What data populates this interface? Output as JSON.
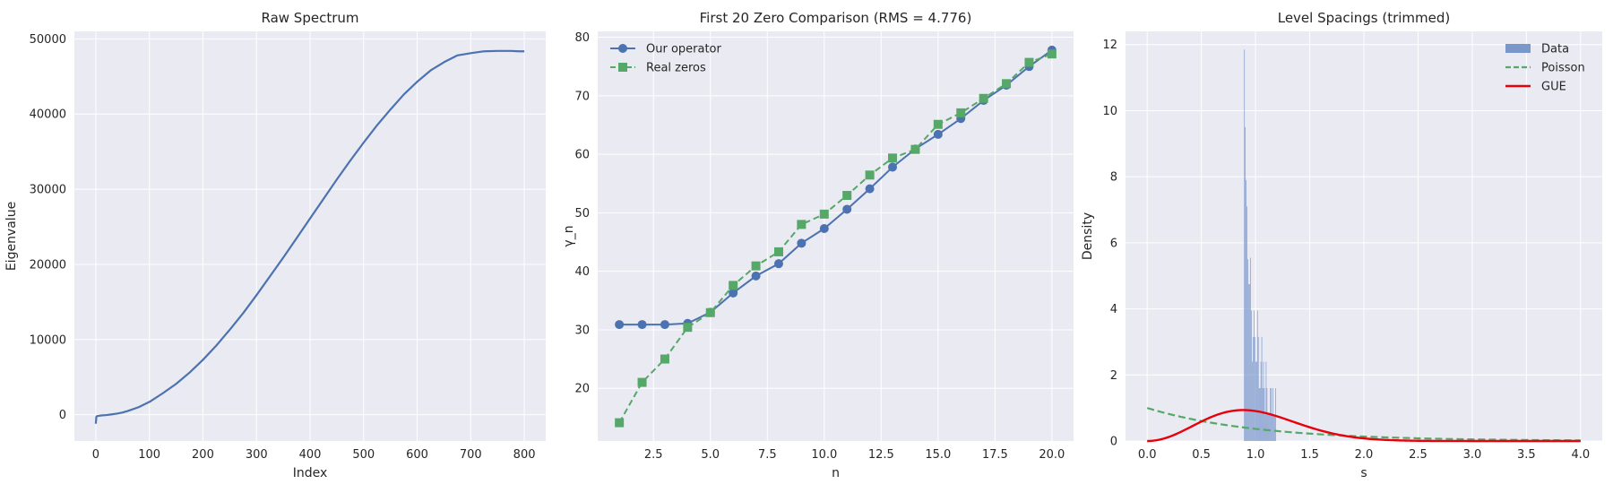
{
  "colors": {
    "blue": "#4c72b0",
    "green": "#55a868",
    "red": "#e8000b",
    "hist": "#7a97cc"
  },
  "chart_data": [
    {
      "type": "line",
      "title": "Raw Spectrum",
      "xlabel": "Index",
      "ylabel": "Eigenvalue",
      "xlim": [
        -40,
        840
      ],
      "ylim": [
        -3500,
        51000
      ],
      "xticks": [
        0,
        100,
        200,
        300,
        400,
        500,
        600,
        700,
        800
      ],
      "yticks": [
        0,
        10000,
        20000,
        30000,
        40000,
        50000
      ],
      "xtick_labels": [
        "0",
        "100",
        "200",
        "300",
        "400",
        "500",
        "600",
        "700",
        "800"
      ],
      "ytick_labels": [
        "0",
        "10000",
        "20000",
        "30000",
        "40000",
        "50000"
      ],
      "series": [
        {
          "name": "spectrum",
          "x": [
            0,
            1,
            2,
            5,
            10,
            20,
            30,
            40,
            50,
            60,
            80,
            100,
            125,
            150,
            175,
            200,
            225,
            250,
            275,
            300,
            325,
            350,
            375,
            400,
            425,
            450,
            475,
            500,
            525,
            550,
            575,
            600,
            625,
            650,
            675,
            700,
            725,
            750,
            775,
            790,
            800
          ],
          "y": [
            -1200,
            -300,
            -200,
            -150,
            -100,
            -50,
            50,
            150,
            300,
            500,
            1000,
            1700,
            2850,
            4100,
            5600,
            7300,
            9200,
            11300,
            13500,
            15900,
            18400,
            20900,
            23500,
            26100,
            28700,
            31300,
            33800,
            36200,
            38500,
            40600,
            42600,
            44300,
            45800,
            46900,
            47800,
            48100,
            48350,
            48400,
            48400,
            48350,
            48350
          ]
        }
      ]
    },
    {
      "type": "line",
      "title": "First 20 Zero Comparison (RMS = 4.776)",
      "xlabel": "n",
      "ylabel": "γ_n",
      "xlim": [
        0.05,
        20.95
      ],
      "ylim": [
        11,
        81
      ],
      "xticks": [
        2.5,
        5.0,
        7.5,
        10.0,
        12.5,
        15.0,
        17.5,
        20.0
      ],
      "yticks": [
        20,
        30,
        40,
        50,
        60,
        70,
        80
      ],
      "xtick_labels": [
        "2.5",
        "5.0",
        "7.5",
        "10.0",
        "12.5",
        "15.0",
        "17.5",
        "20.0"
      ],
      "ytick_labels": [
        "20",
        "30",
        "40",
        "50",
        "60",
        "70",
        "80"
      ],
      "legend": "top-left",
      "series": [
        {
          "name": "Our operator",
          "marker": "circle",
          "style": "solid",
          "x": [
            1,
            2,
            3,
            4,
            5,
            6,
            7,
            8,
            9,
            10,
            11,
            12,
            13,
            14,
            15,
            16,
            17,
            18,
            19,
            20
          ],
          "y": [
            30.9,
            30.9,
            30.9,
            31.1,
            33.0,
            36.3,
            39.2,
            41.3,
            44.8,
            47.3,
            50.6,
            54.1,
            57.8,
            60.9,
            63.4,
            66.1,
            69.2,
            71.8,
            75.0,
            77.8
          ]
        },
        {
          "name": "Real zeros",
          "marker": "square",
          "style": "dashed",
          "x": [
            1,
            2,
            3,
            4,
            5,
            6,
            7,
            8,
            9,
            10,
            11,
            12,
            13,
            14,
            15,
            16,
            17,
            18,
            19,
            20
          ],
          "y": [
            14.13,
            21.02,
            25.01,
            30.42,
            32.94,
            37.59,
            40.92,
            43.33,
            48.01,
            49.77,
            52.97,
            56.45,
            59.35,
            60.83,
            65.11,
            67.08,
            69.55,
            72.07,
            75.7,
            77.14
          ]
        }
      ]
    },
    {
      "type": "bar",
      "title": "Level Spacings (trimmed)",
      "xlabel": "s",
      "ylabel": "Density",
      "xlim": [
        -0.2,
        4.2
      ],
      "ylim": [
        0,
        12.4
      ],
      "xticks": [
        0.0,
        0.5,
        1.0,
        1.5,
        2.0,
        2.5,
        3.0,
        3.5,
        4.0
      ],
      "yticks": [
        0,
        2,
        4,
        6,
        8,
        10,
        12
      ],
      "xtick_labels": [
        "0.0",
        "0.5",
        "1.0",
        "1.5",
        "2.0",
        "2.5",
        "3.0",
        "3.5",
        "4.0"
      ],
      "ytick_labels": [
        "0",
        "2",
        "4",
        "6",
        "8",
        "10",
        "12"
      ],
      "legend": "top-right",
      "histogram": {
        "name": "Data",
        "bin_width": 0.008,
        "bin_starts": [
          0.895,
          0.903,
          0.911,
          0.919,
          0.927,
          0.935,
          0.943,
          0.951,
          0.959,
          0.967,
          0.975,
          0.983,
          0.991,
          0.999,
          1.007,
          1.015,
          1.023,
          1.031,
          1.039,
          1.047,
          1.055,
          1.063,
          1.071,
          1.079,
          1.087,
          1.095,
          1.103,
          1.111,
          1.119,
          1.127,
          1.135,
          1.143,
          1.151,
          1.159,
          1.167,
          1.175,
          1.183
        ],
        "densities": [
          11.85,
          9.5,
          7.9,
          7.1,
          5.5,
          4.75,
          4.75,
          5.55,
          3.95,
          2.4,
          3.15,
          3.95,
          3.15,
          2.4,
          2.4,
          3.95,
          3.15,
          1.6,
          1.6,
          2.4,
          3.15,
          1.6,
          2.4,
          1.6,
          0.8,
          2.4,
          1.6,
          0.8,
          0.8,
          0.8,
          1.6,
          1.6,
          0.8,
          1.6,
          0.8,
          0.8,
          1.6
        ]
      },
      "curves": [
        {
          "name": "Poisson",
          "formula": "exp(-s)",
          "style": "dashed"
        },
        {
          "name": "GUE",
          "formula": "(32/pi^2) s^2 exp(-4 s^2 / pi)",
          "style": "solid"
        }
      ]
    }
  ]
}
